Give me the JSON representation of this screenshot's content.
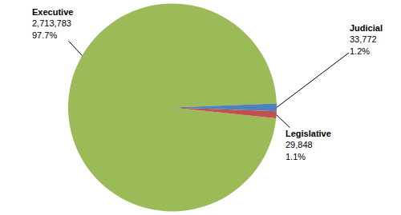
{
  "chart_data": {
    "type": "pie",
    "categories": [
      "Executive",
      "Judicial",
      "Legislative"
    ],
    "values": [
      2713783,
      33772,
      29848
    ],
    "value_labels": [
      "2,713,783",
      "33,772",
      "29,848"
    ],
    "percent_labels": [
      "97.7%",
      "1.2%",
      "1.1%"
    ],
    "colors": [
      "#9bbb59",
      "#4f81bd",
      "#c0504d"
    ],
    "data_labels": true
  }
}
